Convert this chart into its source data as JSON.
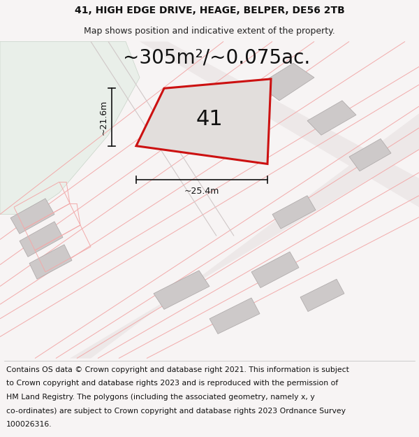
{
  "title_line1": "41, HIGH EDGE DRIVE, HEAGE, BELPER, DE56 2TB",
  "title_line2": "Map shows position and indicative extent of the property.",
  "area_text": "~305m²/~0.075ac.",
  "number_label": "41",
  "dim_width": "~25.4m",
  "dim_height": "~21.6m",
  "footer_lines": [
    "Contains OS data © Crown copyright and database right 2021. This information is subject",
    "to Crown copyright and database rights 2023 and is reproduced with the permission of",
    "HM Land Registry. The polygons (including the associated geometry, namely x, y",
    "co-ordinates) are subject to Crown copyright and database rights 2023 Ordnance Survey",
    "100026316."
  ],
  "bg_color": "#f7f4f4",
  "green_color": "#e9efe9",
  "red_color": "#cc1111",
  "light_red_line": "#f2aaaa",
  "gray_block": "#cdc9c9",
  "property_fill": "#e2dedc",
  "road_fill": "#ede8e8",
  "title_fontsize": 10,
  "subtitle_fontsize": 9,
  "area_fontsize": 20,
  "num_fontsize": 22,
  "dim_fontsize": 9,
  "footer_fontsize": 7.8
}
